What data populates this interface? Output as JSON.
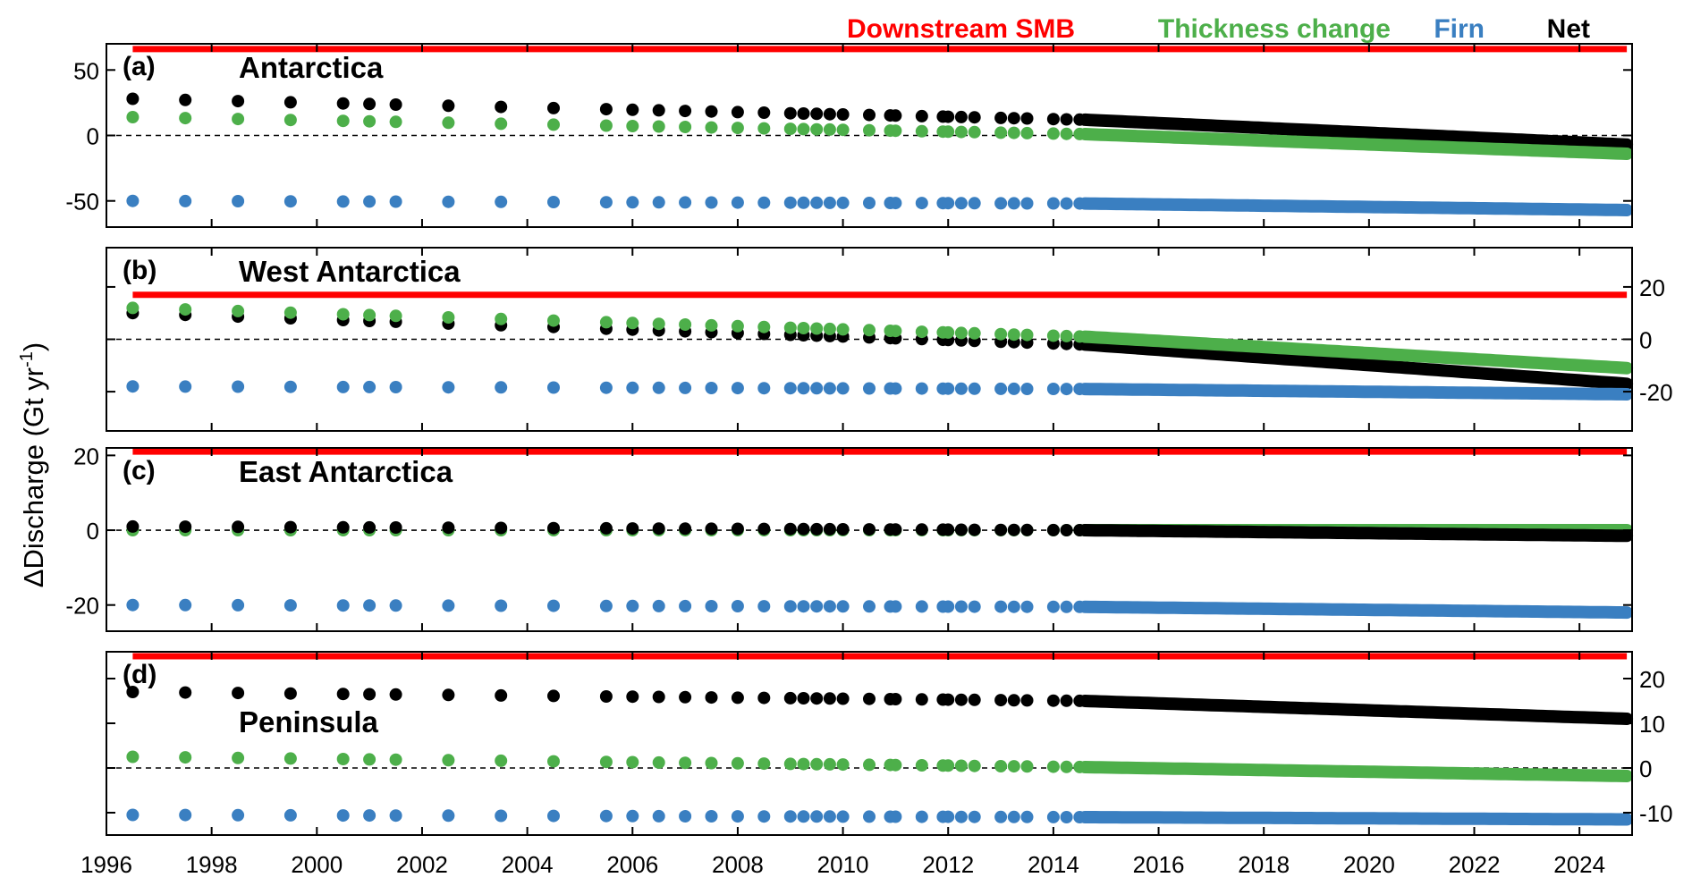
{
  "figure": {
    "ylabel": "ΔDischarge (Gt yr",
    "ylabel_sup": "-1",
    "ylabel_tail": ")",
    "legend": [
      {
        "name": "Downstream SMB",
        "color": "#ff0000"
      },
      {
        "name": "Thickness change",
        "color": "#4daf4a"
      },
      {
        "name": "Firn",
        "color": "#3a7fc1"
      },
      {
        "name": "Net",
        "color": "#000000"
      }
    ],
    "xlim": [
      1996,
      2025
    ],
    "xticks": [
      1996,
      1998,
      2000,
      2002,
      2004,
      2006,
      2008,
      2010,
      2012,
      2014,
      2016,
      2018,
      2020,
      2022,
      2024
    ]
  },
  "chart_data": [
    {
      "type": "scatter",
      "panel_label": "(a)",
      "title": "Antarctica",
      "yaxis_side": "left",
      "ylim": [
        -70,
        70
      ],
      "yticks": [
        50,
        0,
        -50
      ],
      "ytick_labels": [
        "50",
        "0",
        "-50"
      ],
      "red_line": 66,
      "series": [
        {
          "name": "Net",
          "color": "#000000",
          "start": 28,
          "mid": 12,
          "end": -7
        },
        {
          "name": "Thickness change",
          "color": "#4daf4a",
          "start": 14,
          "mid": 1,
          "end": -14
        },
        {
          "name": "Firn",
          "color": "#3a7fc1",
          "start": -50,
          "mid": -52,
          "end": -57
        }
      ]
    },
    {
      "type": "scatter",
      "panel_label": "(b)",
      "title": "West Antarctica",
      "yaxis_side": "right",
      "ylim": [
        -35,
        35
      ],
      "yticks": [
        20,
        0,
        -20
      ],
      "ytick_labels": [
        "20",
        "0",
        "-20"
      ],
      "red_line": 17,
      "series": [
        {
          "name": "Net",
          "color": "#000000",
          "start": 10,
          "mid": -2,
          "end": -17
        },
        {
          "name": "Thickness change",
          "color": "#4daf4a",
          "start": 12,
          "mid": 1,
          "end": -11
        },
        {
          "name": "Firn",
          "color": "#3a7fc1",
          "start": -18,
          "mid": -19,
          "end": -21
        }
      ]
    },
    {
      "type": "scatter",
      "panel_label": "(c)",
      "title": "East Antarctica",
      "yaxis_side": "left",
      "ylim": [
        -27,
        22
      ],
      "yticks": [
        20,
        0,
        -20
      ],
      "ytick_labels": [
        "20",
        "0",
        "-20"
      ],
      "red_line": 21,
      "series": [
        {
          "name": "Thickness change",
          "color": "#4daf4a",
          "start": 0,
          "mid": 0,
          "end": 0
        },
        {
          "name": "Net",
          "color": "#000000",
          "start": 1,
          "mid": 0,
          "end": -1.5
        },
        {
          "name": "Firn",
          "color": "#3a7fc1",
          "start": -20,
          "mid": -20.5,
          "end": -22
        }
      ]
    },
    {
      "type": "scatter",
      "panel_label": "(d)",
      "title": "Peninsula",
      "yaxis_side": "right",
      "ylim": [
        -15,
        26
      ],
      "yticks": [
        20,
        10,
        0,
        -10
      ],
      "ytick_labels": [
        "20",
        "10",
        "0",
        "-10"
      ],
      "red_line": 25,
      "series": [
        {
          "name": "Net",
          "color": "#000000",
          "start": 17,
          "mid": 15,
          "end": 11
        },
        {
          "name": "Thickness change",
          "color": "#4daf4a",
          "start": 2.5,
          "mid": 0.2,
          "end": -1.8
        },
        {
          "name": "Firn",
          "color": "#3a7fc1",
          "start": -10.5,
          "mid": -11,
          "end": -11.5
        }
      ]
    }
  ]
}
